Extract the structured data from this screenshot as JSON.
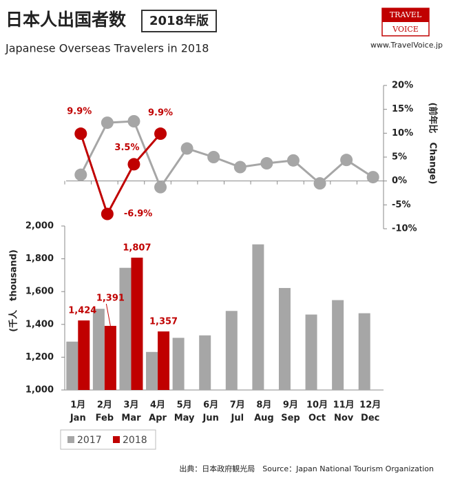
{
  "header": {
    "title": "日本人出国者数",
    "edition": "2018年版",
    "subtitle": "Japanese Overseas Travelers in 2018",
    "logo_top": "TRAVEL",
    "logo_bottom": "VOICE",
    "website": "www.TravelVoice.jp",
    "source": "出典：日本政府観光局　Source：Japan National Tourism Organization"
  },
  "chart_data": [
    {
      "type": "line",
      "y_label": "(前年比　Change)",
      "ylim": [
        -10,
        20
      ],
      "yticks": [
        {
          "value": -10,
          "label": "-10%"
        },
        {
          "value": -5,
          "label": "-5%"
        },
        {
          "value": 0,
          "label": "0%"
        },
        {
          "value": 5,
          "label": "5%"
        },
        {
          "value": 10,
          "label": "10%"
        },
        {
          "value": 15,
          "label": "15%"
        },
        {
          "value": 20,
          "label": "20%"
        }
      ],
      "series": [
        {
          "name": "2017",
          "color": "#a6a6a6",
          "values": [
            1.3,
            12.2,
            12.5,
            -1.3,
            6.8,
            5.0,
            2.9,
            3.7,
            4.3,
            -0.5,
            4.4,
            0.8
          ]
        },
        {
          "name": "2018",
          "color": "#c00000",
          "values": [
            9.9,
            -6.9,
            3.5,
            9.9,
            null,
            null,
            null,
            null,
            null,
            null,
            null,
            null
          ],
          "value_labels": [
            "9.9%",
            "-6.9%",
            "3.5%",
            "9.9%",
            null,
            null,
            null,
            null,
            null,
            null,
            null,
            null
          ]
        }
      ]
    },
    {
      "type": "bar",
      "y_label": "(千人　thousand)",
      "ylim": [
        1000,
        2000
      ],
      "yticks": [
        {
          "value": 1000,
          "label": "1,000"
        },
        {
          "value": 1200,
          "label": "1,200"
        },
        {
          "value": 1400,
          "label": "1,400"
        },
        {
          "value": 1600,
          "label": "1,600"
        },
        {
          "value": 1800,
          "label": "1,800"
        },
        {
          "value": 2000,
          "label": "2,000"
        }
      ],
      "categories": [
        "1月",
        "2月",
        "3月",
        "4月",
        "5月",
        "6月",
        "7月",
        "8月",
        "9月",
        "10月",
        "11月",
        "12月"
      ],
      "categories_en": [
        "Jan",
        "Feb",
        "Mar",
        "Apr",
        "May",
        "Jun",
        "Jul",
        "Aug",
        "Sep",
        "Oct",
        "Nov",
        "Dec"
      ],
      "legend": "bottom-left",
      "series": [
        {
          "name": "2017",
          "color": "#a6a6a6",
          "values": [
            1295,
            1495,
            1745,
            1232,
            1318,
            1333,
            1482,
            1888,
            1622,
            1460,
            1548,
            1468
          ]
        },
        {
          "name": "2018",
          "color": "#c00000",
          "values": [
            1424,
            1391,
            1807,
            1357,
            null,
            null,
            null,
            null,
            null,
            null,
            null,
            null
          ],
          "value_labels": [
            "1,424",
            "1,391",
            "1,807",
            "1,357",
            null,
            null,
            null,
            null,
            null,
            null,
            null,
            null
          ]
        }
      ]
    }
  ]
}
